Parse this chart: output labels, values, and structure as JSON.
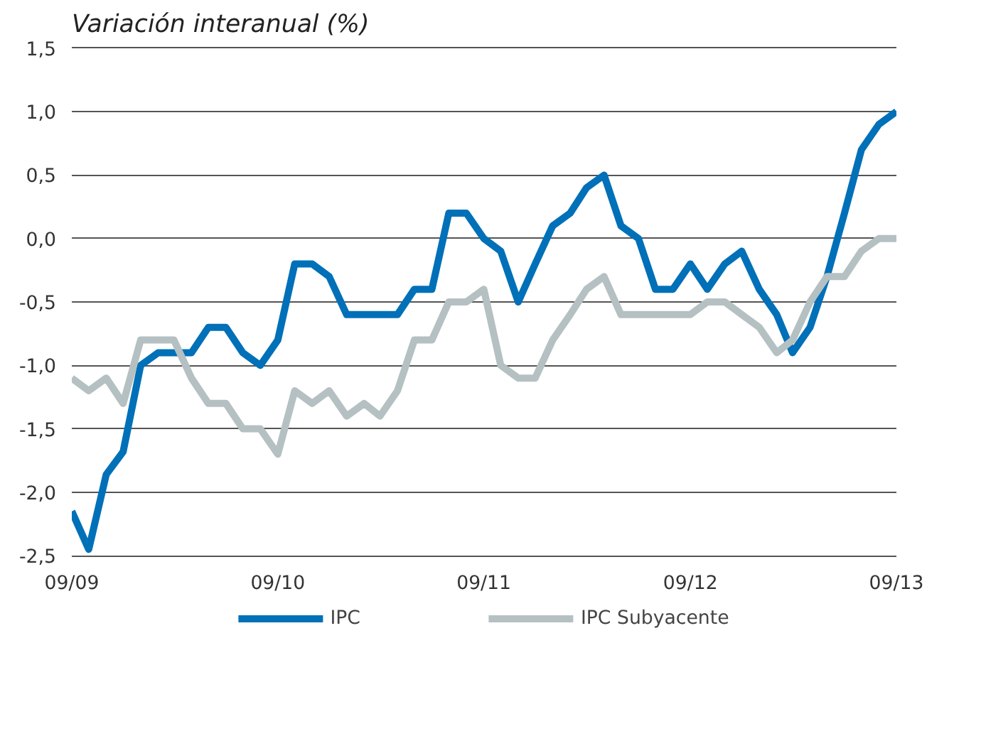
{
  "chart_data": {
    "type": "line",
    "title": "Variación interanual (%)",
    "x": [
      "2009-09",
      "2009-10",
      "2009-11",
      "2009-12",
      "2010-01",
      "2010-02",
      "2010-03",
      "2010-04",
      "2010-05",
      "2010-06",
      "2010-07",
      "2010-08",
      "2010-09",
      "2010-10",
      "2010-11",
      "2010-12",
      "2011-01",
      "2011-02",
      "2011-03",
      "2011-04",
      "2011-05",
      "2011-06",
      "2011-07",
      "2011-08",
      "2011-09",
      "2011-10",
      "2011-11",
      "2011-12",
      "2012-01",
      "2012-02",
      "2012-03",
      "2012-04",
      "2012-05",
      "2012-06",
      "2012-07",
      "2012-08",
      "2012-09",
      "2012-10",
      "2012-11",
      "2012-12",
      "2013-01",
      "2013-02",
      "2013-03",
      "2013-04",
      "2013-05",
      "2013-06",
      "2013-07",
      "2013-08",
      "2013-09"
    ],
    "series": [
      {
        "name": "IPC",
        "color": "#0070b8",
        "values": [
          -2.15,
          -2.45,
          -1.86,
          -1.68,
          -1.0,
          -0.9,
          -0.9,
          -0.9,
          -0.7,
          -0.7,
          -0.9,
          -1.0,
          -0.8,
          -0.2,
          -0.2,
          -0.3,
          -0.6,
          -0.6,
          -0.6,
          -0.6,
          -0.4,
          -0.4,
          0.2,
          0.2,
          0.0,
          -0.1,
          -0.5,
          -0.2,
          0.1,
          0.2,
          0.4,
          0.5,
          0.1,
          0.0,
          -0.4,
          -0.4,
          -0.2,
          -0.4,
          -0.2,
          -0.1,
          -0.4,
          -0.6,
          -0.9,
          -0.7,
          -0.3,
          0.2,
          0.7,
          0.9,
          1.0
        ]
      },
      {
        "name": "IPC Subyacente",
        "color": "#b5c0c2",
        "values": [
          -1.1,
          -1.2,
          -1.1,
          -1.3,
          -0.8,
          -0.8,
          -0.8,
          -1.1,
          -1.3,
          -1.3,
          -1.5,
          -1.5,
          -1.7,
          -1.2,
          -1.3,
          -1.2,
          -1.4,
          -1.3,
          -1.4,
          -1.2,
          -0.8,
          -0.8,
          -0.5,
          -0.5,
          -0.4,
          -1.0,
          -1.1,
          -1.1,
          -0.8,
          -0.6,
          -0.4,
          -0.3,
          -0.6,
          -0.6,
          -0.6,
          -0.6,
          -0.6,
          -0.5,
          -0.5,
          -0.6,
          -0.7,
          -0.9,
          -0.8,
          -0.5,
          -0.3,
          -0.3,
          -0.1,
          0.0,
          0.0
        ]
      }
    ],
    "xlim": [
      "2009-09",
      "2013-09"
    ],
    "xticks": [
      {
        "value": "2009-09",
        "label": "09/09"
      },
      {
        "value": "2010-09",
        "label": "09/10"
      },
      {
        "value": "2011-09",
        "label": "09/11"
      },
      {
        "value": "2012-09",
        "label": "09/12"
      },
      {
        "value": "2013-09",
        "label": "09/13"
      }
    ],
    "ylim": [
      -2.5,
      1.5
    ],
    "yticks": [
      {
        "value": -2.5,
        "label": "-2,5"
      },
      {
        "value": -2.0,
        "label": "-2,0"
      },
      {
        "value": -1.5,
        "label": "-1,5"
      },
      {
        "value": -1.0,
        "label": "-1,0"
      },
      {
        "value": -0.5,
        "label": "-0,5"
      },
      {
        "value": 0.0,
        "label": "0,0"
      },
      {
        "value": 0.5,
        "label": "0,5"
      },
      {
        "value": 1.0,
        "label": "1,0"
      },
      {
        "value": 1.5,
        "label": "1,5"
      }
    ],
    "grid": "y",
    "legend": "bottom",
    "line_style": "solid",
    "marker": "none"
  }
}
